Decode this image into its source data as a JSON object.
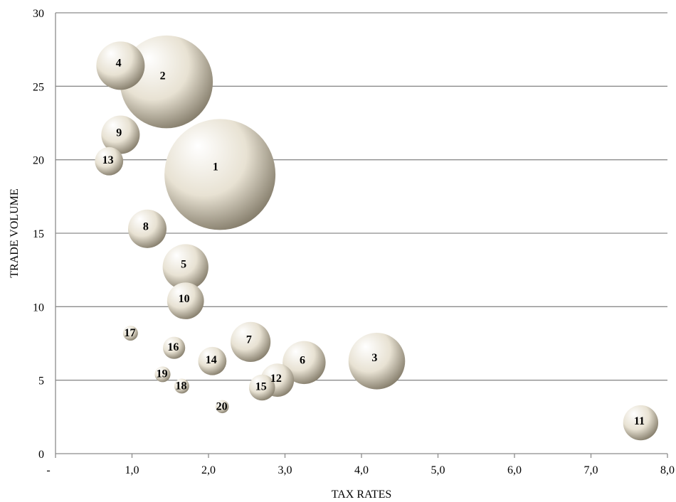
{
  "chart_data": {
    "type": "scatter",
    "subtype": "bubble",
    "title": "",
    "xlabel": "TAX RATES",
    "ylabel": "TRADE VOLUME",
    "xlim": [
      0,
      8
    ],
    "ylim": [
      0,
      30
    ],
    "x_ticks": [
      0,
      1,
      2,
      3,
      4,
      5,
      6,
      7,
      8
    ],
    "x_tick_labels": [
      "-",
      "1,0",
      "2,0",
      "3,0",
      "4,0",
      "5,0",
      "6,0",
      "7,0",
      "8,0"
    ],
    "y_ticks": [
      0,
      5,
      10,
      15,
      20,
      25,
      30
    ],
    "y_tick_labels": [
      "0",
      "5",
      "10",
      "15",
      "20",
      "25",
      "30"
    ],
    "grid": "horizontal",
    "legend": "none",
    "bubble_color": "#e8e2d3",
    "bubble_highlight": "#ffffff",
    "bubble_shadow": "#7d7563",
    "points": [
      {
        "label": "1",
        "x": 2.15,
        "y": 19.0,
        "size": 1.0
      },
      {
        "label": "2",
        "x": 1.45,
        "y": 25.3,
        "size": 0.7
      },
      {
        "label": "3",
        "x": 4.2,
        "y": 6.3,
        "size": 0.26
      },
      {
        "label": "4",
        "x": 0.85,
        "y": 26.4,
        "size": 0.19
      },
      {
        "label": "5",
        "x": 1.7,
        "y": 12.7,
        "size": 0.17
      },
      {
        "label": "6",
        "x": 3.25,
        "y": 6.2,
        "size": 0.15
      },
      {
        "label": "7",
        "x": 2.55,
        "y": 7.6,
        "size": 0.13
      },
      {
        "label": "8",
        "x": 1.2,
        "y": 15.3,
        "size": 0.12
      },
      {
        "label": "9",
        "x": 0.85,
        "y": 21.7,
        "size": 0.12
      },
      {
        "label": "10",
        "x": 1.7,
        "y": 10.4,
        "size": 0.11
      },
      {
        "label": "11",
        "x": 7.65,
        "y": 2.1,
        "size": 0.1
      },
      {
        "label": "12",
        "x": 2.9,
        "y": 5.0,
        "size": 0.09
      },
      {
        "label": "13",
        "x": 0.7,
        "y": 19.9,
        "size": 0.065
      },
      {
        "label": "14",
        "x": 2.05,
        "y": 6.3,
        "size": 0.065
      },
      {
        "label": "15",
        "x": 2.7,
        "y": 4.5,
        "size": 0.055
      },
      {
        "label": "16",
        "x": 1.55,
        "y": 7.2,
        "size": 0.04
      },
      {
        "label": "17",
        "x": 0.98,
        "y": 8.2,
        "size": 0.018
      },
      {
        "label": "18",
        "x": 1.65,
        "y": 4.6,
        "size": 0.018
      },
      {
        "label": "19",
        "x": 1.4,
        "y": 5.4,
        "size": 0.02
      },
      {
        "label": "20",
        "x": 2.18,
        "y": 3.2,
        "size": 0.014
      }
    ]
  }
}
